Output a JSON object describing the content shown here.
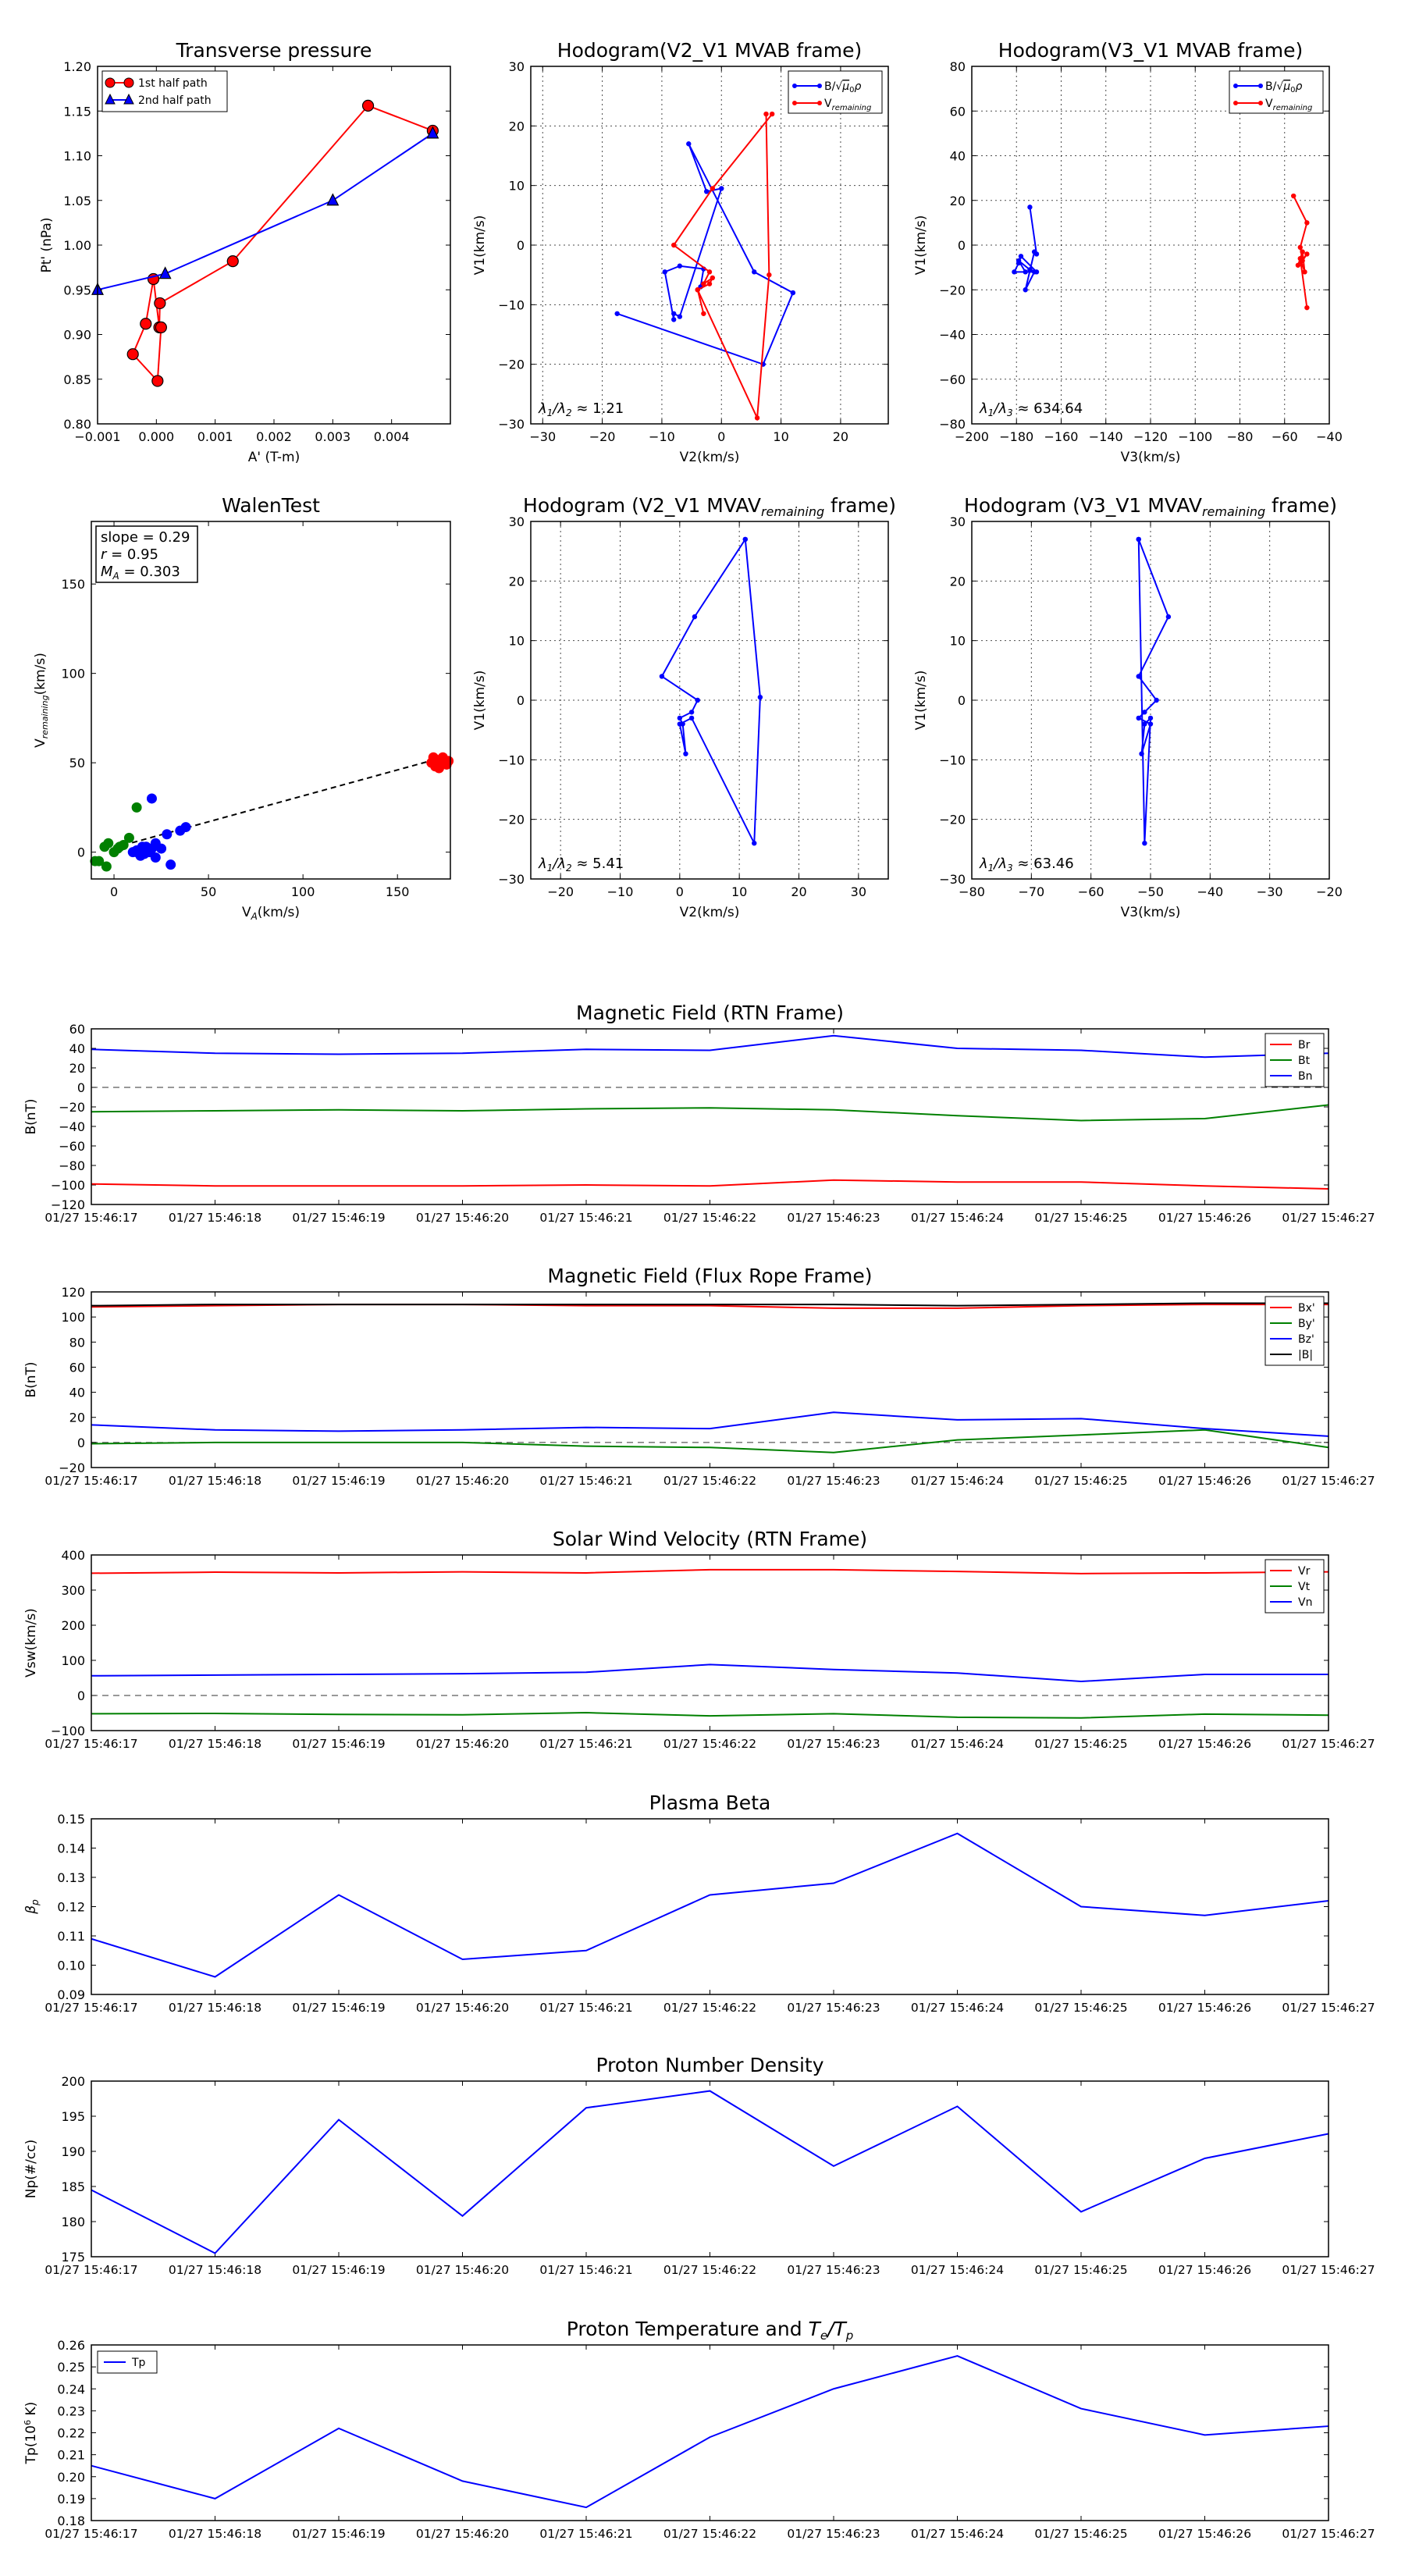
{
  "chart_data": [
    {
      "id": "tp",
      "type": "line",
      "title": "Transverse pressure",
      "xlabel": "A' (T-m)",
      "ylabel": "Pt' (nPa)",
      "xlim": [
        -0.001,
        0.005
      ],
      "ylim": [
        0.8,
        1.2
      ],
      "xticks": [
        -0.001,
        0.0,
        0.001,
        0.002,
        0.003,
        0.004
      ],
      "xticklabels": [
        "−0.001",
        "0.000",
        "0.001",
        "0.002",
        "0.003",
        "0.004"
      ],
      "yticks": [
        0.8,
        0.85,
        0.9,
        0.95,
        1.0,
        1.05,
        1.1,
        1.15,
        1.2
      ],
      "yticklabels": [
        "0.80",
        "0.85",
        "0.90",
        "0.95",
        "1.00",
        "1.05",
        "1.10",
        "1.15",
        "1.20"
      ],
      "grid": false,
      "legend": "top-left",
      "series": [
        {
          "name": "1st half path",
          "color": "#ff0000",
          "marker": "circle",
          "x": [
            0.0047,
            0.0036,
            0.0013,
            6e-05,
            5e-05,
            -5e-05,
            -0.00018,
            -0.0004,
            2e-05,
            8e-05
          ],
          "y": [
            1.128,
            1.156,
            0.982,
            0.935,
            0.908,
            0.962,
            0.912,
            0.878,
            0.848,
            0.908
          ]
        },
        {
          "name": "2nd half path",
          "color": "#0000ff",
          "marker": "triangle",
          "x": [
            0.0047,
            0.003,
            0.00015,
            -0.001
          ],
          "y": [
            1.125,
            1.05,
            0.968,
            0.95
          ]
        }
      ]
    },
    {
      "id": "h1",
      "type": "line",
      "title": "Hodogram(V2_V1 MVAB frame)",
      "xlabel": "V2(km/s)",
      "ylabel": "V1(km/s)",
      "xlim": [
        -32,
        28
      ],
      "ylim": [
        -30,
        30
      ],
      "xticks": [
        -30,
        -20,
        -10,
        0,
        10,
        20
      ],
      "yticks": [
        -30,
        -20,
        -10,
        0,
        10,
        20,
        30
      ],
      "grid": true,
      "legend": "top-right",
      "annotation": "λ1/λ2 ≈ 1.21",
      "series": [
        {
          "name": "B/√μ0ρ",
          "color": "#0000ff",
          "x": [
            -17.5,
            7,
            12,
            5.5,
            -5.5,
            -2.5,
            0,
            -7,
            -8,
            -8,
            -9.5,
            -7,
            -3,
            -3.5
          ],
          "y": [
            -11.5,
            -20,
            -8,
            -4.5,
            17,
            9,
            9.5,
            -12,
            -11.5,
            -12.5,
            -4.5,
            -3.5,
            -4,
            -7
          ]
        },
        {
          "name": "V_remaining",
          "color": "#ff0000",
          "x": [
            8.5,
            -1.5,
            -8,
            -2,
            -3,
            -1.5,
            -2,
            -4,
            -3,
            -4,
            6,
            8,
            7.5
          ],
          "y": [
            22,
            9.5,
            0,
            -4.5,
            -6.5,
            -5.5,
            -6.5,
            -7.5,
            -11.5,
            -7.5,
            -29,
            -5,
            22
          ]
        }
      ]
    },
    {
      "id": "h2",
      "type": "line",
      "title": "Hodogram(V3_V1 MVAB frame)",
      "xlabel": "V3(km/s)",
      "ylabel": "V1(km/s)",
      "xlim": [
        -200,
        -40
      ],
      "ylim": [
        -80,
        80
      ],
      "xticks": [
        -200,
        -180,
        -160,
        -140,
        -120,
        -100,
        -80,
        -60,
        -40
      ],
      "yticks": [
        -80,
        -60,
        -40,
        -20,
        0,
        20,
        40,
        60,
        80
      ],
      "grid": true,
      "legend": "top-right",
      "annotation": "λ1/λ3 ≈ 634.64",
      "series": [
        {
          "name": "B/√μ0ρ",
          "color": "#0000ff",
          "x": [
            -174,
            -171,
            -172,
            -176,
            -172,
            -181,
            -179,
            -178,
            -171,
            -174,
            -179,
            -176
          ],
          "y": [
            17,
            -4,
            -3,
            -20,
            -12,
            -12,
            -8,
            -5,
            -12,
            -11,
            -7,
            -12
          ]
        },
        {
          "name": "V_remaining",
          "color": "#ff0000",
          "x": [
            -56,
            -50,
            -53,
            -52,
            -50,
            -54,
            -52,
            -51,
            -53,
            -50
          ],
          "y": [
            22,
            10,
            -1,
            -7,
            -4,
            -9,
            -3,
            -12,
            -6,
            -28
          ]
        }
      ]
    },
    {
      "id": "wt",
      "type": "scatter",
      "title": "WalenTest",
      "xlabel": "V_A(km/s)",
      "ylabel": "V_remaining(km/s)",
      "xlim": [
        -12,
        178
      ],
      "ylim": [
        -15,
        185
      ],
      "xticks": [
        0,
        50,
        100,
        150
      ],
      "yticks": [
        0,
        50,
        100,
        150
      ],
      "grid": false,
      "stats": [
        "slope = 0.29",
        "r = 0.95",
        "M_A = 0.303"
      ],
      "fit": {
        "slope": 0.29,
        "intercept": 2.5,
        "x": [
          0,
          172
        ]
      },
      "series": [
        {
          "name": "red",
          "color": "#ff0000",
          "x": [
            168,
            170,
            172,
            173,
            174,
            175,
            176,
            170,
            169,
            172,
            174,
            171,
            176,
            177
          ],
          "y": [
            50,
            52,
            51,
            49,
            53,
            50,
            51,
            48,
            53,
            47,
            52,
            50,
            49,
            51
          ]
        },
        {
          "name": "green",
          "color": "#008000",
          "x": [
            -5,
            -3,
            2,
            5,
            8,
            12,
            -8,
            -4,
            0,
            3,
            -10
          ],
          "y": [
            3,
            5,
            2,
            4,
            8,
            25,
            -5,
            -8,
            0,
            3,
            -5
          ]
        },
        {
          "name": "blue",
          "color": "#0000ff",
          "x": [
            10,
            12,
            14,
            15,
            16,
            17,
            18,
            19,
            20,
            22,
            25,
            30,
            38,
            20,
            18,
            16,
            15,
            14,
            13,
            12,
            35,
            22,
            28
          ],
          "y": [
            0,
            1,
            0,
            2,
            -1,
            3,
            1,
            0,
            30,
            -3,
            2,
            -7,
            14,
            2,
            0,
            1,
            3,
            -2,
            1,
            0,
            12,
            5,
            10
          ]
        }
      ]
    },
    {
      "id": "h3",
      "type": "line",
      "title": "Hodogram (V2_V1 MVAV_remaining frame)",
      "xlabel": "V2(km/s)",
      "ylabel": "V1(km/s)",
      "xlim": [
        -25,
        35
      ],
      "ylim": [
        -30,
        30
      ],
      "xticks": [
        -20,
        -10,
        0,
        10,
        20,
        30
      ],
      "yticks": [
        -30,
        -20,
        -10,
        0,
        10,
        20,
        30
      ],
      "grid": true,
      "annotation": "λ1/λ2 ≈ 5.41",
      "series": [
        {
          "name": "",
          "color": "#0000ff",
          "x": [
            11,
            2.5,
            -3,
            3,
            2,
            0,
            0.5,
            1,
            0,
            2,
            12.5,
            13.5,
            11
          ],
          "y": [
            27,
            14,
            4,
            0,
            -2,
            -3,
            -4,
            -9,
            -4,
            -3,
            -24,
            0.5,
            27
          ]
        }
      ]
    },
    {
      "id": "h4",
      "type": "line",
      "title": "Hodogram (V3_V1 MVAV_remaining frame)",
      "xlabel": "V3(km/s)",
      "ylabel": "V1(km/s)",
      "xlim": [
        -80,
        -20
      ],
      "ylim": [
        -30,
        30
      ],
      "xticks": [
        -80,
        -70,
        -60,
        -50,
        -40,
        -30,
        -20
      ],
      "yticks": [
        -30,
        -20,
        -10,
        0,
        10,
        20,
        30
      ],
      "grid": true,
      "annotation": "λ1/λ3 ≈ 63.46",
      "series": [
        {
          "name": "",
          "color": "#0000ff",
          "x": [
            -52,
            -47,
            -52,
            -49,
            -51,
            -52,
            -50,
            -51.5,
            -51,
            -50,
            -51,
            -52
          ],
          "y": [
            27,
            14,
            4,
            0,
            -2,
            -3,
            -4,
            -9,
            -4,
            -3,
            -24,
            27
          ]
        }
      ]
    },
    {
      "id": "mf_rtn",
      "type": "line",
      "title": "Magnetic Field (RTN Frame)",
      "ylabel": "B(nT)",
      "ylim": [
        -120,
        60
      ],
      "yticks": [
        -120,
        -100,
        -80,
        -60,
        -40,
        -20,
        0,
        20,
        40,
        60
      ],
      "zero_line": true,
      "legend": "top-right",
      "series": [
        {
          "name": "Br",
          "color": "#ff0000",
          "values": [
            -99,
            -101,
            -101,
            -101,
            -100,
            -101,
            -95,
            -97,
            -97,
            -101,
            -104
          ]
        },
        {
          "name": "Bt",
          "color": "#008000",
          "values": [
            -25,
            -24,
            -23,
            -24,
            -22,
            -21,
            -23,
            -29,
            -34,
            -32,
            -18
          ]
        },
        {
          "name": "Bn",
          "color": "#0000ff",
          "values": [
            39,
            35,
            34,
            35,
            39,
            38,
            53,
            40,
            38,
            31,
            35
          ]
        }
      ]
    },
    {
      "id": "mf_fr",
      "type": "line",
      "title": "Magnetic Field (Flux Rope Frame)",
      "ylabel": "B(nT)",
      "ylim": [
        -20,
        120
      ],
      "yticks": [
        -20,
        0,
        20,
        40,
        60,
        80,
        100,
        120
      ],
      "zero_line": true,
      "legend": "top-right",
      "series": [
        {
          "name": "Bx'",
          "color": "#ff0000",
          "values": [
            108,
            109,
            110,
            110,
            109,
            109,
            107,
            107,
            109,
            110,
            110
          ]
        },
        {
          "name": "By'",
          "color": "#008000",
          "values": [
            -1,
            0,
            0,
            0,
            -3,
            -4,
            -8,
            2,
            6,
            10,
            -4
          ]
        },
        {
          "name": "Bz'",
          "color": "#0000ff",
          "values": [
            14,
            10,
            9,
            10,
            12,
            11,
            24,
            18,
            19,
            11,
            5
          ]
        },
        {
          "name": "|B|",
          "color": "#000000",
          "values": [
            109,
            110,
            110,
            110,
            110,
            110,
            110,
            109,
            110,
            111,
            111
          ]
        }
      ]
    },
    {
      "id": "vsw",
      "type": "line",
      "title": "Solar Wind Velocity (RTN Frame)",
      "ylabel": "Vsw(km/s)",
      "ylim": [
        -100,
        400
      ],
      "yticks": [
        -100,
        0,
        100,
        200,
        300,
        400
      ],
      "zero_line": true,
      "legend": "top-right",
      "series": [
        {
          "name": "Vr",
          "color": "#ff0000",
          "values": [
            348,
            351,
            349,
            352,
            349,
            358,
            358,
            353,
            347,
            349,
            352
          ]
        },
        {
          "name": "Vt",
          "color": "#008000",
          "values": [
            -52,
            -51,
            -54,
            -55,
            -49,
            -58,
            -52,
            -62,
            -64,
            -53,
            -56
          ]
        },
        {
          "name": "Vn",
          "color": "#0000ff",
          "values": [
            56,
            58,
            60,
            62,
            66,
            88,
            74,
            64,
            40,
            60,
            60
          ]
        }
      ]
    },
    {
      "id": "beta",
      "type": "line",
      "title": "Plasma Beta",
      "ylabel": "βp",
      "ylim": [
        0.09,
        0.15
      ],
      "yticks": [
        0.09,
        0.1,
        0.11,
        0.12,
        0.13,
        0.14,
        0.15
      ],
      "series": [
        {
          "name": "",
          "color": "#0000ff",
          "values": [
            0.109,
            0.096,
            0.124,
            0.102,
            0.105,
            0.124,
            0.128,
            0.145,
            0.12,
            0.117,
            0.122
          ]
        }
      ]
    },
    {
      "id": "np",
      "type": "line",
      "title": "Proton Number Density",
      "ylabel": "Np(#/cc)",
      "ylim": [
        175,
        200
      ],
      "yticks": [
        175,
        180,
        185,
        190,
        195,
        200
      ],
      "series": [
        {
          "name": "",
          "color": "#0000ff",
          "values": [
            184.5,
            175.5,
            194.5,
            180.8,
            196.2,
            198.6,
            187.9,
            196.4,
            181.4,
            189.0,
            192.5
          ]
        }
      ]
    },
    {
      "id": "tpt",
      "type": "line",
      "title": "Proton Temperature and Te/Tp",
      "ylabel": "Tp(10^6 K)",
      "ylim": [
        0.18,
        0.26
      ],
      "yticks": [
        0.18,
        0.19,
        0.2,
        0.21,
        0.22,
        0.23,
        0.24,
        0.25,
        0.26
      ],
      "legend": "top-left",
      "series": [
        {
          "name": "Tp",
          "color": "#0000ff",
          "values": [
            0.205,
            0.19,
            0.222,
            0.198,
            0.186,
            0.218,
            0.24,
            0.255,
            0.231,
            0.219,
            0.223
          ]
        }
      ]
    }
  ],
  "time_ticks": [
    "01/27 15:46:17",
    "01/27 15:46:18",
    "01/27 15:46:19",
    "01/27 15:46:20",
    "01/27 15:46:21",
    "01/27 15:46:22",
    "01/27 15:46:23",
    "01/27 15:46:24",
    "01/27 15:46:25",
    "01/27 15:46:26",
    "01/27 15:46:27"
  ]
}
